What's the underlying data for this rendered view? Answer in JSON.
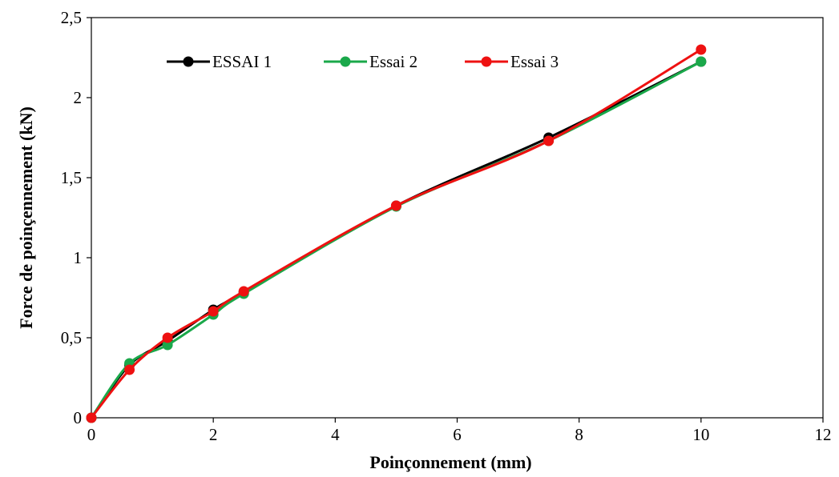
{
  "chart_data": {
    "type": "line",
    "title": "",
    "xlabel": "Poinçonnement  (mm)",
    "ylabel": "Force de poinçennement  (kN)",
    "xlim": [
      0,
      12
    ],
    "ylim": [
      0,
      2.5
    ],
    "x_ticks": [
      "0",
      "2",
      "4",
      "6",
      "8",
      "10",
      "12"
    ],
    "y_ticks": [
      "0",
      "0,5",
      "1",
      "1,5",
      "2",
      "2,5"
    ],
    "grid": false,
    "legend_position": "top-left",
    "series": [
      {
        "name": "ESSAI 1",
        "color": "#000000",
        "x": [
          0,
          0.625,
          1.25,
          2,
          2.5,
          5,
          7.5,
          10
        ],
        "y": [
          0,
          0.33,
          0.48,
          0.675,
          0.785,
          1.325,
          1.75,
          2.225
        ]
      },
      {
        "name": "Essai 2",
        "color": "#1aa84a",
        "x": [
          0,
          0.625,
          1.25,
          2,
          2.5,
          5,
          7.5,
          10
        ],
        "y": [
          0,
          0.34,
          0.455,
          0.645,
          0.775,
          1.32,
          1.73,
          2.225
        ]
      },
      {
        "name": "Essai 3",
        "color": "#ee1111",
        "x": [
          0,
          0.625,
          1.25,
          2,
          2.5,
          5,
          7.5,
          10
        ],
        "y": [
          0,
          0.3,
          0.5,
          0.665,
          0.79,
          1.325,
          1.73,
          2.3
        ]
      }
    ]
  }
}
